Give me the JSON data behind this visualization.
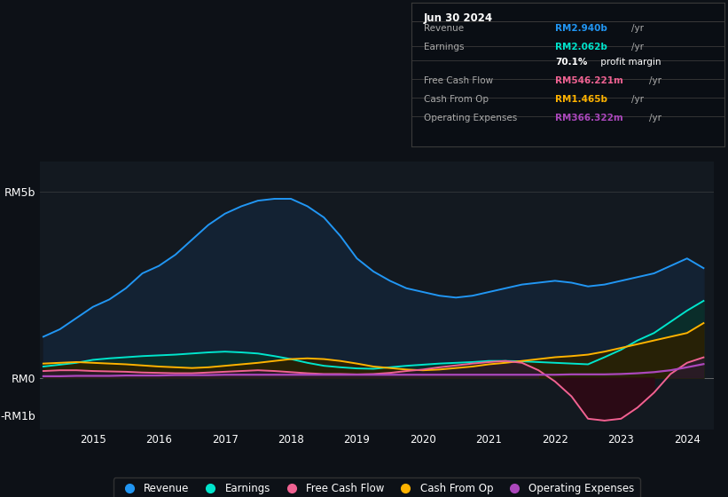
{
  "background_color": "#0d1117",
  "plot_bg_color": "#131920",
  "years": [
    2014.25,
    2014.5,
    2014.75,
    2015.0,
    2015.25,
    2015.5,
    2015.75,
    2016.0,
    2016.25,
    2016.5,
    2016.75,
    2017.0,
    2017.25,
    2017.5,
    2017.75,
    2018.0,
    2018.25,
    2018.5,
    2018.75,
    2019.0,
    2019.25,
    2019.5,
    2019.75,
    2020.0,
    2020.25,
    2020.5,
    2020.75,
    2021.0,
    2021.25,
    2021.5,
    2021.75,
    2022.0,
    2022.25,
    2022.5,
    2022.75,
    2023.0,
    2023.25,
    2023.5,
    2023.75,
    2024.0,
    2024.25
  ],
  "revenue": [
    1.1,
    1.3,
    1.6,
    1.9,
    2.1,
    2.4,
    2.8,
    3.0,
    3.3,
    3.7,
    4.1,
    4.4,
    4.6,
    4.75,
    4.8,
    4.8,
    4.6,
    4.3,
    3.8,
    3.2,
    2.85,
    2.6,
    2.4,
    2.3,
    2.2,
    2.15,
    2.2,
    2.3,
    2.4,
    2.5,
    2.55,
    2.6,
    2.55,
    2.45,
    2.5,
    2.6,
    2.7,
    2.8,
    3.0,
    3.2,
    2.94
  ],
  "earnings": [
    0.3,
    0.35,
    0.4,
    0.48,
    0.52,
    0.55,
    0.58,
    0.6,
    0.62,
    0.65,
    0.68,
    0.7,
    0.68,
    0.65,
    0.58,
    0.5,
    0.4,
    0.32,
    0.28,
    0.25,
    0.24,
    0.28,
    0.32,
    0.35,
    0.38,
    0.4,
    0.42,
    0.45,
    0.45,
    0.44,
    0.42,
    0.4,
    0.38,
    0.36,
    0.55,
    0.75,
    1.0,
    1.2,
    1.5,
    1.8,
    2.062
  ],
  "free_cash_flow": [
    0.18,
    0.2,
    0.2,
    0.18,
    0.17,
    0.16,
    0.14,
    0.13,
    0.12,
    0.12,
    0.14,
    0.16,
    0.18,
    0.2,
    0.18,
    0.15,
    0.12,
    0.1,
    0.1,
    0.09,
    0.1,
    0.13,
    0.18,
    0.22,
    0.28,
    0.33,
    0.38,
    0.42,
    0.45,
    0.4,
    0.2,
    -0.1,
    -0.5,
    -1.1,
    -1.15,
    -1.1,
    -0.8,
    -0.4,
    0.1,
    0.4,
    0.546
  ],
  "cash_from_op": [
    0.38,
    0.4,
    0.42,
    0.4,
    0.38,
    0.36,
    0.33,
    0.3,
    0.28,
    0.26,
    0.28,
    0.32,
    0.36,
    0.4,
    0.45,
    0.5,
    0.52,
    0.5,
    0.45,
    0.38,
    0.3,
    0.26,
    0.22,
    0.2,
    0.22,
    0.26,
    0.3,
    0.36,
    0.4,
    0.45,
    0.5,
    0.55,
    0.58,
    0.62,
    0.7,
    0.8,
    0.9,
    1.0,
    1.1,
    1.2,
    1.465
  ],
  "operating_exp": [
    0.04,
    0.04,
    0.05,
    0.05,
    0.05,
    0.06,
    0.06,
    0.06,
    0.07,
    0.07,
    0.07,
    0.08,
    0.08,
    0.08,
    0.08,
    0.08,
    0.08,
    0.08,
    0.08,
    0.08,
    0.08,
    0.08,
    0.08,
    0.08,
    0.08,
    0.08,
    0.08,
    0.08,
    0.08,
    0.08,
    0.08,
    0.08,
    0.09,
    0.09,
    0.09,
    0.1,
    0.12,
    0.15,
    0.2,
    0.28,
    0.366
  ],
  "revenue_color": "#2196f3",
  "earnings_color": "#00e5cc",
  "fcf_color": "#f06292",
  "cashop_color": "#ffb300",
  "opex_color": "#ab47bc",
  "revenue_fill": "#132233",
  "earnings_fill": "#0a2d2a",
  "fcf_fill_pos": "#2a1a2a",
  "fcf_fill_neg": "#2d0a15",
  "cashop_fill": "#2d2000",
  "ylim_min": -1.4,
  "ylim_max": 5.8,
  "xlim_min": 2014.2,
  "xlim_max": 2024.4,
  "ytick_vals": [
    -1.0,
    0.0,
    5.0
  ],
  "ytick_labels": [
    "-RM1b",
    "RM0",
    "RM5b"
  ],
  "xtick_vals": [
    2015,
    2016,
    2017,
    2018,
    2019,
    2020,
    2021,
    2022,
    2023,
    2024
  ],
  "info_date": "Jun 30 2024",
  "info_rows": [
    {
      "label": "Revenue",
      "value": "RM2.940b",
      "suffix": "/yr",
      "color": "#2196f3"
    },
    {
      "label": "Earnings",
      "value": "RM2.062b",
      "suffix": "/yr",
      "color": "#00e5cc"
    },
    {
      "label": "",
      "value": "70.1%",
      "suffix": " profit margin",
      "color": "#ffffff"
    },
    {
      "label": "Free Cash Flow",
      "value": "RM546.221m",
      "suffix": "/yr",
      "color": "#f06292"
    },
    {
      "label": "Cash From Op",
      "value": "RM1.465b",
      "suffix": "/yr",
      "color": "#ffb300"
    },
    {
      "label": "Operating Expenses",
      "value": "RM366.322m",
      "suffix": "/yr",
      "color": "#ab47bc"
    }
  ],
  "legend_items": [
    {
      "label": "Revenue",
      "color": "#2196f3"
    },
    {
      "label": "Earnings",
      "color": "#00e5cc"
    },
    {
      "label": "Free Cash Flow",
      "color": "#f06292"
    },
    {
      "label": "Cash From Op",
      "color": "#ffb300"
    },
    {
      "label": "Operating Expenses",
      "color": "#ab47bc"
    }
  ]
}
